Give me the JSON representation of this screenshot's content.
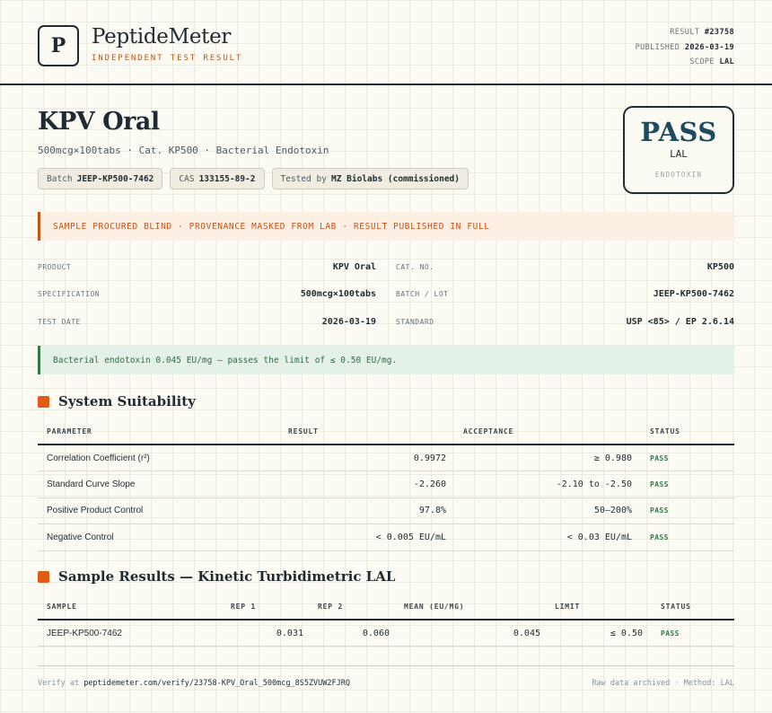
{
  "brand": {
    "logo_letter": "P",
    "name": "PeptideMeter",
    "tagline": "INDEPENDENT TEST RESULT"
  },
  "meta": {
    "result_label": "RESULT",
    "result_value": "#23758",
    "published_label": "PUBLISHED",
    "published_value": "2026-03-19",
    "scope_label": "SCOPE",
    "scope_value": "LAL"
  },
  "product": {
    "title": "KPV Oral",
    "subtitle": "500mcg×100tabs · Cat. KP500 · Bacterial Endotoxin",
    "chips": [
      {
        "label": "Batch",
        "value": "JEEP-KP500-7462"
      },
      {
        "label": "CAS",
        "value": "133155-89-2"
      },
      {
        "label": "Tested by",
        "value": "MZ Biolabs (commissioned)"
      }
    ]
  },
  "badge": {
    "verdict": "PASS",
    "scope": "LAL",
    "kind": "ENDOTOXIN"
  },
  "notice": "SAMPLE PROCURED BLIND · PROVENANCE MASKED FROM LAB · RESULT PUBLISHED IN FULL",
  "info": {
    "product_label": "PRODUCT",
    "product_value": "KPV Oral",
    "catno_label": "CAT. NO.",
    "catno_value": "KP500",
    "spec_label": "SPECIFICATION",
    "spec_value": "500mcg×100tabs",
    "batch_label": "BATCH / LOT",
    "batch_value": "JEEP-KP500-7462",
    "date_label": "TEST DATE",
    "date_value": "2026-03-19",
    "standard_label": "STANDARD",
    "standard_value": "USP <85> / EP 2.6.14"
  },
  "conclusion": "Bacterial endotoxin 0.045 EU/mg — passes the limit of ≤ 0.50 EU/mg.",
  "suitability": {
    "title": "System Suitability",
    "headers": [
      "PARAMETER",
      "RESULT",
      "ACCEPTANCE",
      "STATUS"
    ],
    "rows": [
      {
        "parameter": "Correlation Coefficient (r²)",
        "result": "0.9972",
        "acceptance": "≥ 0.980",
        "status": "PASS"
      },
      {
        "parameter": "Standard Curve Slope",
        "result": "-2.260",
        "acceptance": "-2.10 to -2.50",
        "status": "PASS"
      },
      {
        "parameter": "Positive Product Control",
        "result": "97.8%",
        "acceptance": "50–200%",
        "status": "PASS"
      },
      {
        "parameter": "Negative Control",
        "result": "< 0.005 EU/mL",
        "acceptance": "< 0.03 EU/mL",
        "status": "PASS"
      }
    ]
  },
  "samples": {
    "title": "Sample Results — Kinetic Turbidimetric LAL",
    "headers": [
      "SAMPLE",
      "REP 1",
      "REP 2",
      "MEAN (EU/MG)",
      "LIMIT",
      "STATUS"
    ],
    "rows": [
      {
        "sample": "JEEP-KP500-7462",
        "rep1": "0.031",
        "rep2": "0.060",
        "mean": "0.045",
        "limit": "≤ 0.50",
        "status": "PASS"
      }
    ]
  },
  "footer": {
    "verify_prefix": "Verify at",
    "verify_url": "peptidemeter.com/verify/23758-KPV_Oral_500mcg_8S5ZVUW2FJRQ",
    "right": "Raw data archived · Method: LAL"
  },
  "colors": {
    "ink": "#1f2b33",
    "accent": "#c2551a",
    "pass": "#2f7a45",
    "badge": "#1e4a5e"
  }
}
